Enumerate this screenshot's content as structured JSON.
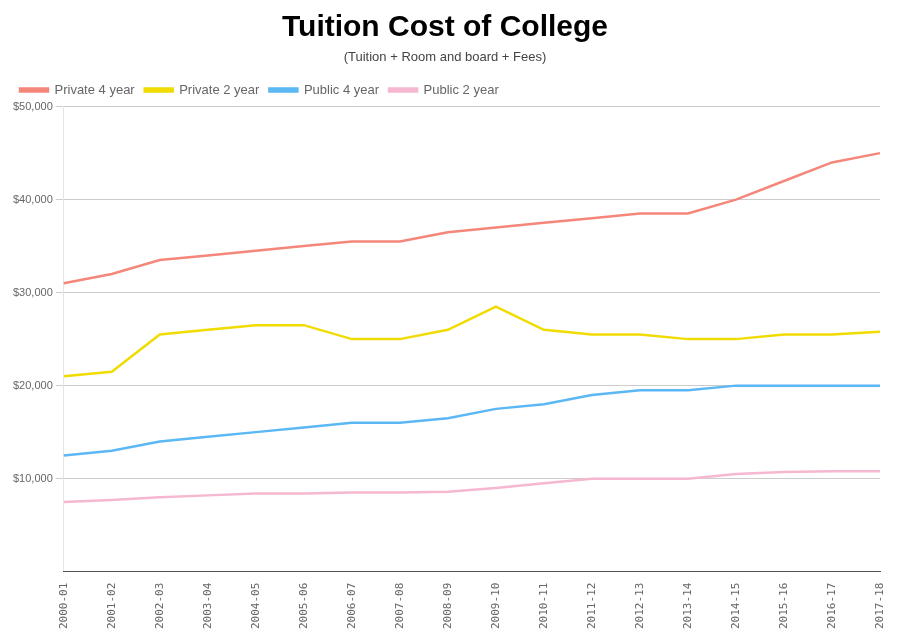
{
  "chart_data": {
    "type": "line",
    "title": "Tuition Cost of College",
    "subtitle": "(Tuition + Room and board + Fees)",
    "categories": [
      "2000-01",
      "2001-02",
      "2002-03",
      "2003-04",
      "2004-05",
      "2005-06",
      "2006-07",
      "2007-08",
      "2008-09",
      "2009-10",
      "2010-11",
      "2011-12",
      "2012-13",
      "2013-14",
      "2014-15",
      "2015-16",
      "2016-17",
      "2017-18"
    ],
    "series": [
      {
        "name": "Private 4 year",
        "color": "#F4877A",
        "values": [
          31000,
          32000,
          33500,
          34000,
          34500,
          35000,
          35500,
          35500,
          36500,
          37000,
          37500,
          38000,
          38500,
          38500,
          40000,
          42000,
          44000,
          45000
        ]
      },
      {
        "name": "Private 2 year",
        "color": "#F0DC00",
        "values": [
          21000,
          21500,
          25500,
          26000,
          26500,
          26500,
          25000,
          25000,
          26000,
          28500,
          26000,
          25500,
          25500,
          25000,
          25000,
          25500,
          25500,
          25800
        ]
      },
      {
        "name": "Public 4 year",
        "color": "#5BB8F5",
        "values": [
          12500,
          13000,
          14000,
          14500,
          15000,
          15500,
          16000,
          16000,
          16500,
          17500,
          18000,
          19000,
          19500,
          19500,
          20000,
          20000,
          20000,
          20000
        ]
      },
      {
        "name": "Public 2 year",
        "color": "#F5B8D0",
        "values": [
          7500,
          7700,
          8000,
          8200,
          8400,
          8400,
          8500,
          8500,
          8600,
          9000,
          9500,
          10000,
          10000,
          10000,
          10500,
          10700,
          10800,
          10800
        ]
      }
    ],
    "ylim": [
      0,
      50000
    ],
    "yticks": [
      {
        "value": 10000,
        "label": "$10,000"
      },
      {
        "value": 20000,
        "label": "$20,000"
      },
      {
        "value": 30000,
        "label": "$30,000"
      },
      {
        "value": 40000,
        "label": "$40,000"
      },
      {
        "value": 50000,
        "label": "$50,000"
      }
    ],
    "grid": true,
    "legend": "upper left"
  }
}
